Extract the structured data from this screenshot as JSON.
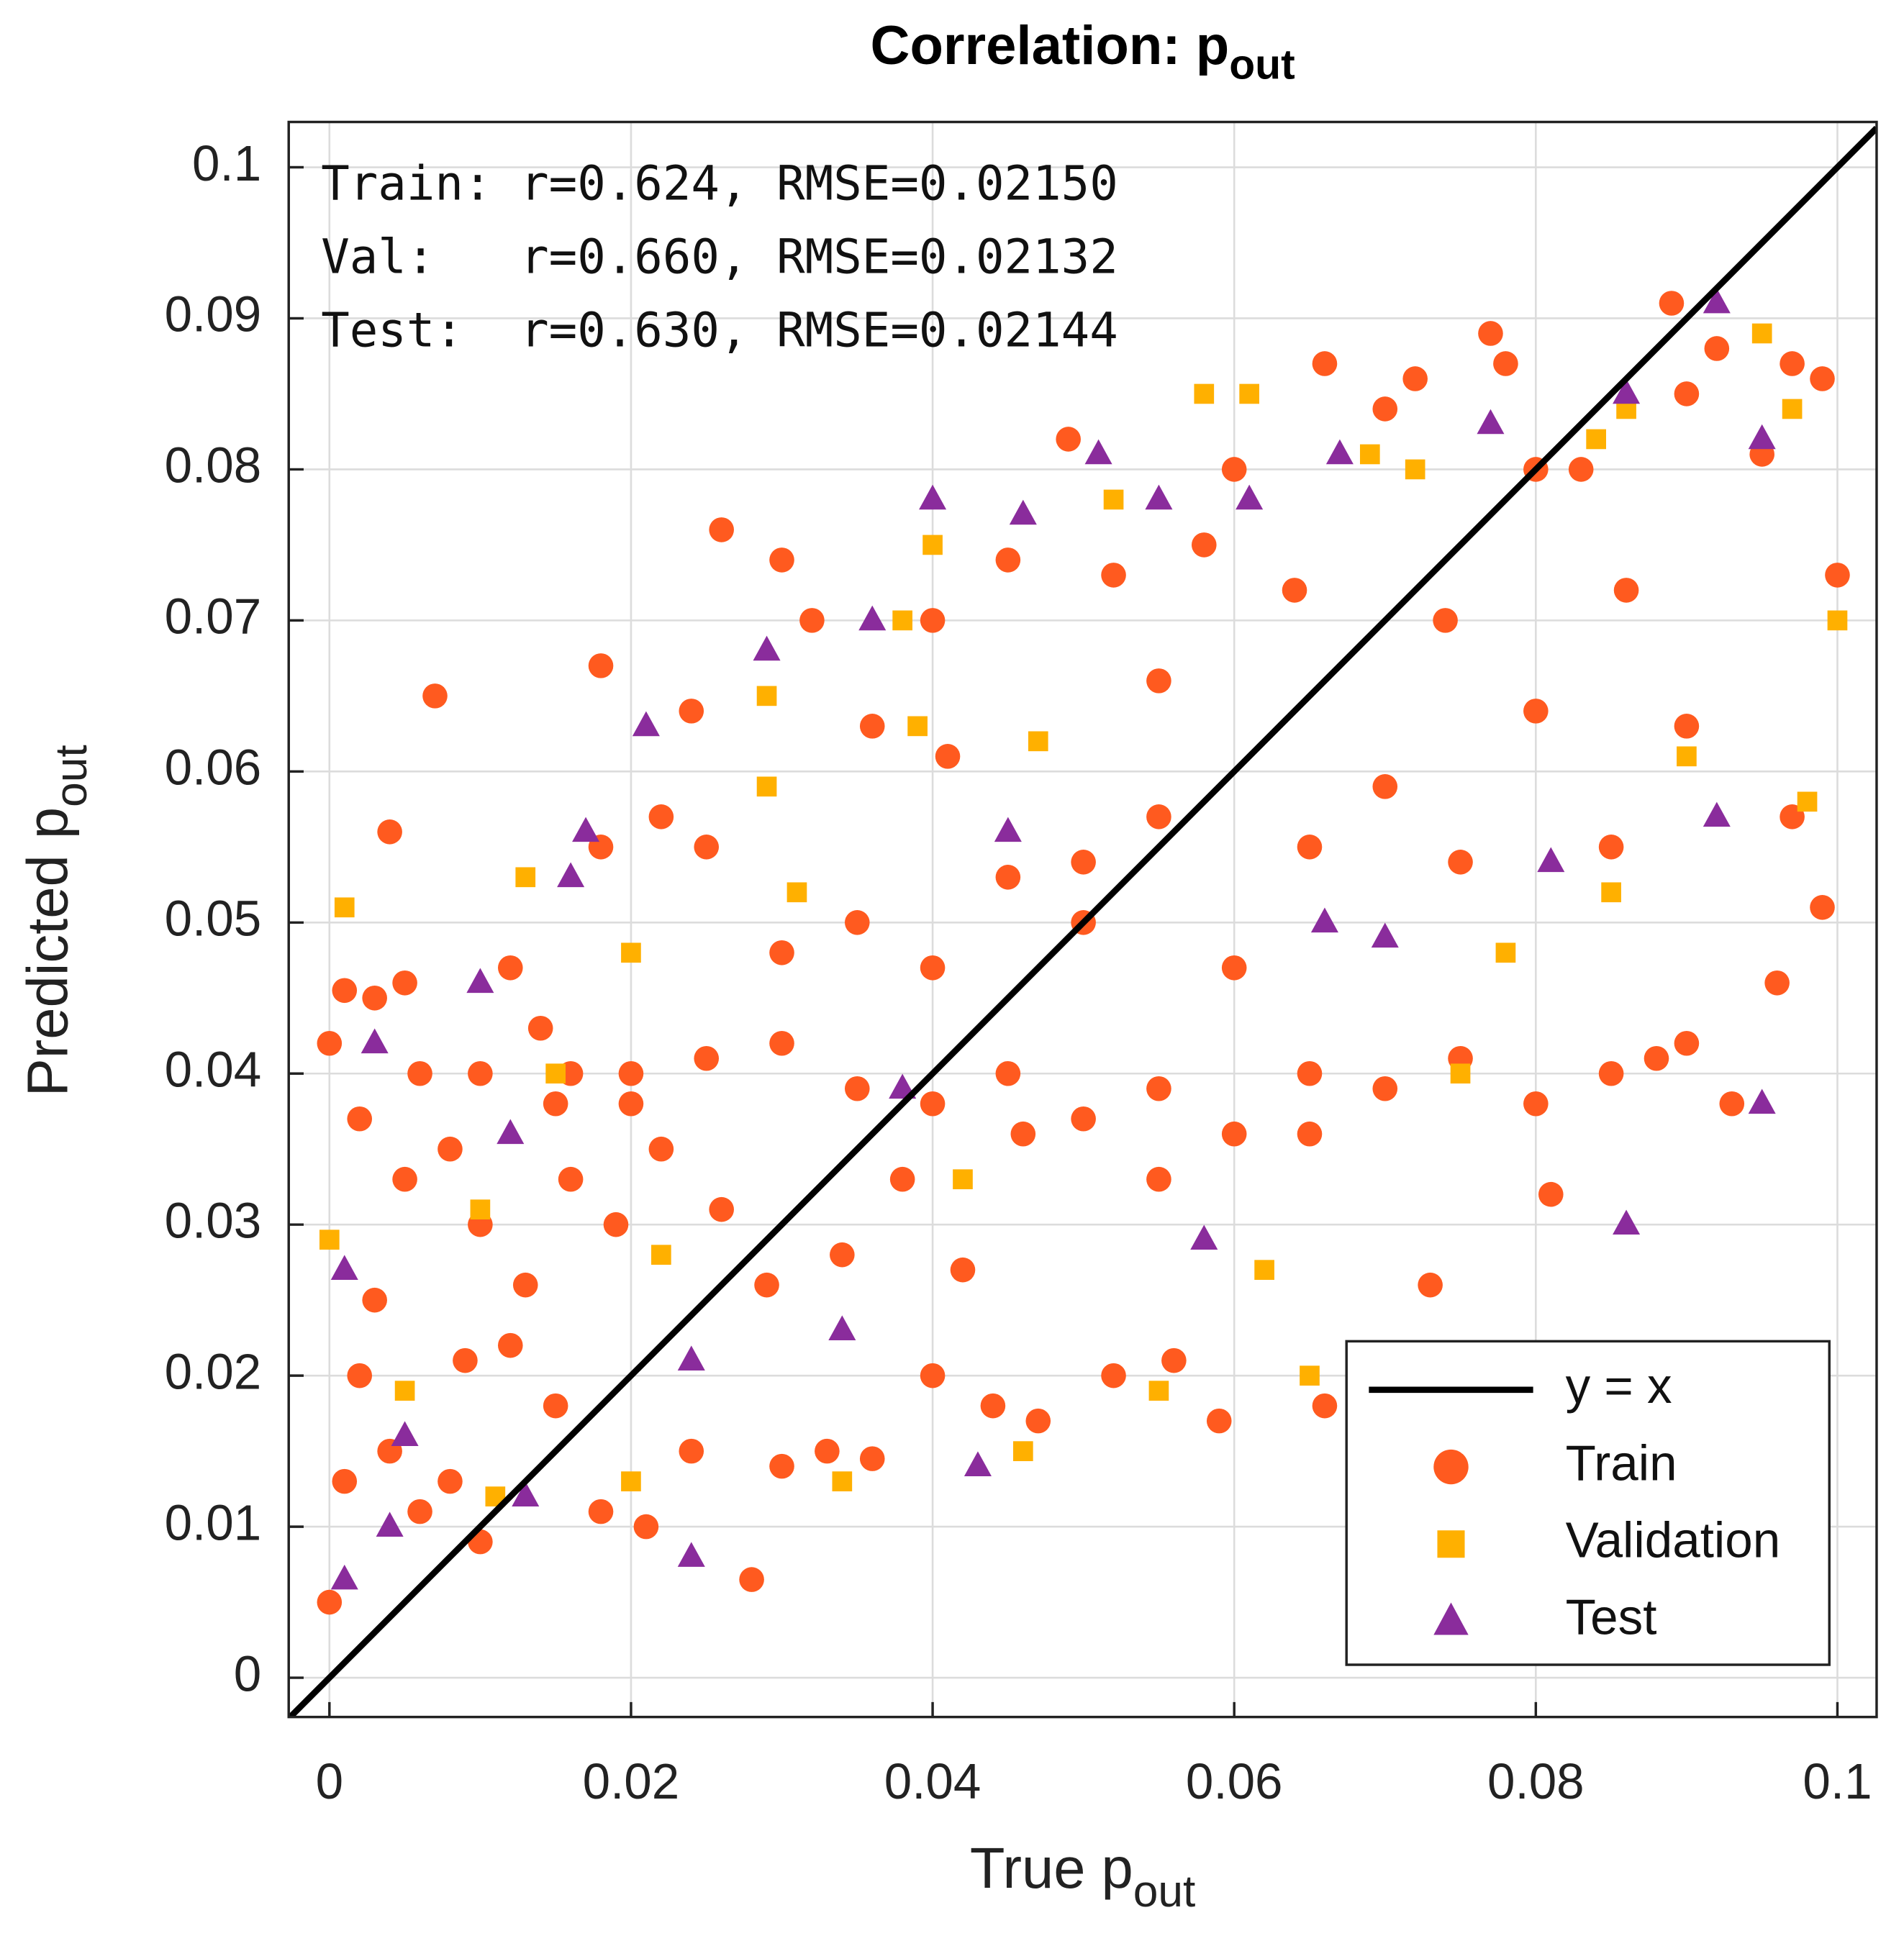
{
  "chart_data": {
    "type": "scatter",
    "title": "Correlation: p",
    "title_sub": "out",
    "xlabel": "True p",
    "xlabel_sub": "out",
    "ylabel": "Predicted p",
    "ylabel_sub": "out",
    "annotations": [
      "Train: r=0.624, RMSE=0.02150",
      "Val:   r=0.660, RMSE=0.02132",
      "Test:  r=0.630, RMSE=0.02144"
    ],
    "xlim": [
      -0.0027,
      0.1026
    ],
    "ylim": [
      -0.0026,
      0.103
    ],
    "xticks": [
      0,
      0.02,
      0.04,
      0.06,
      0.08,
      0.1
    ],
    "yticks": [
      0,
      0.01,
      0.02,
      0.03,
      0.04,
      0.05,
      0.06,
      0.07,
      0.08,
      0.09,
      0.1
    ],
    "grid": true,
    "legend": "lower right",
    "reference_line": {
      "name": "y = x",
      "color": "#000000",
      "x": [
        -0.0027,
        0.1026
      ],
      "values": [
        -0.0027,
        0.1026
      ]
    },
    "series": [
      {
        "name": "Train",
        "marker": "circle",
        "color": "#ff5a1f",
        "x": [
          0.0,
          0.001,
          0.002,
          0.003,
          0.004,
          0.005,
          0.007,
          0.006,
          0.008,
          0.01,
          0.012,
          0.014,
          0.016,
          0.018,
          0.018,
          0.02,
          0.022,
          0.024,
          0.026,
          0.03,
          0.032,
          0.036,
          0.04,
          0.041,
          0.045,
          0.049,
          0.05,
          0.052,
          0.055,
          0.058,
          0.06,
          0.064,
          0.066,
          0.07,
          0.072,
          0.074,
          0.077,
          0.078,
          0.08,
          0.083,
          0.086,
          0.089,
          0.09,
          0.092,
          0.095,
          0.097,
          0.099,
          0.1,
          0.099,
          0.097,
          0.09,
          0.085,
          0.08,
          0.075,
          0.07,
          0.065,
          0.06,
          0.055,
          0.05,
          0.045,
          0.04,
          0.035,
          0.03,
          0.025,
          0.002,
          0.004,
          0.006,
          0.008,
          0.01,
          0.012,
          0.015,
          0.018,
          0.021,
          0.024,
          0.028,
          0.03,
          0.033,
          0.036,
          0.04,
          0.044,
          0.047,
          0.052,
          0.056,
          0.059,
          0.066,
          0.073,
          0.081,
          0.088,
          0.093,
          0.096,
          0.0,
          0.001,
          0.003,
          0.005,
          0.009,
          0.013,
          0.016,
          0.019,
          0.022,
          0.026,
          0.029,
          0.034,
          0.038,
          0.042,
          0.046,
          0.05,
          0.055,
          0.06,
          0.065,
          0.07,
          0.075,
          0.08,
          0.085,
          0.09,
          0.015,
          0.025,
          0.035,
          0.045,
          0.055,
          0.065,
          0.01,
          0.02,
          0.03,
          0.04
        ],
        "values": [
          0.042,
          0.0455,
          0.037,
          0.045,
          0.056,
          0.046,
          0.065,
          0.04,
          0.035,
          0.03,
          0.047,
          0.043,
          0.04,
          0.067,
          0.055,
          0.04,
          0.057,
          0.064,
          0.076,
          0.074,
          0.07,
          0.063,
          0.07,
          0.061,
          0.074,
          0.082,
          0.054,
          0.073,
          0.066,
          0.075,
          0.08,
          0.072,
          0.087,
          0.084,
          0.086,
          0.07,
          0.089,
          0.087,
          0.08,
          0.08,
          0.072,
          0.091,
          0.085,
          0.088,
          0.081,
          0.087,
          0.086,
          0.073,
          0.051,
          0.057,
          0.063,
          0.055,
          0.064,
          0.054,
          0.059,
          0.055,
          0.047,
          0.057,
          0.05,
          0.053,
          0.047,
          0.05,
          0.048,
          0.055,
          0.02,
          0.015,
          0.011,
          0.013,
          0.009,
          0.022,
          0.018,
          0.011,
          0.01,
          0.015,
          0.0065,
          0.014,
          0.015,
          0.0145,
          0.02,
          0.018,
          0.017,
          0.02,
          0.021,
          0.017,
          0.018,
          0.026,
          0.032,
          0.041,
          0.038,
          0.046,
          0.005,
          0.013,
          0.025,
          0.033,
          0.021,
          0.026,
          0.033,
          0.03,
          0.035,
          0.031,
          0.026,
          0.028,
          0.033,
          0.027,
          0.036,
          0.037,
          0.033,
          0.036,
          0.04,
          0.039,
          0.041,
          0.038,
          0.04,
          0.042,
          0.038,
          0.041,
          0.039,
          0.04,
          0.039,
          0.036,
          0.04,
          0.038,
          0.042,
          0.038
        ]
      },
      {
        "name": "Validation",
        "marker": "square",
        "color": "#ffb000",
        "x": [
          0.001,
          0.0,
          0.005,
          0.01,
          0.013,
          0.02,
          0.022,
          0.029,
          0.029,
          0.031,
          0.038,
          0.039,
          0.04,
          0.047,
          0.052,
          0.058,
          0.061,
          0.069,
          0.072,
          0.084,
          0.086,
          0.095,
          0.097,
          0.1,
          0.098,
          0.09,
          0.085,
          0.078,
          0.062,
          0.046,
          0.034,
          0.02,
          0.011,
          0.055,
          0.065,
          0.042,
          0.075,
          0.015
        ],
        "values": [
          0.051,
          0.029,
          0.019,
          0.031,
          0.053,
          0.048,
          0.028,
          0.059,
          0.065,
          0.052,
          0.07,
          0.063,
          0.075,
          0.062,
          0.078,
          0.085,
          0.085,
          0.081,
          0.08,
          0.082,
          0.084,
          0.089,
          0.084,
          0.07,
          0.058,
          0.061,
          0.052,
          0.048,
          0.027,
          0.015,
          0.013,
          0.013,
          0.012,
          0.019,
          0.02,
          0.033,
          0.04,
          0.04
        ]
      },
      {
        "name": "Test",
        "marker": "triangle",
        "color": "#8a2c9c",
        "x": [
          0.001,
          0.001,
          0.003,
          0.004,
          0.01,
          0.013,
          0.016,
          0.017,
          0.021,
          0.024,
          0.029,
          0.036,
          0.04,
          0.046,
          0.051,
          0.055,
          0.061,
          0.067,
          0.077,
          0.086,
          0.092,
          0.095,
          0.095,
          0.092,
          0.086,
          0.081,
          0.066,
          0.058,
          0.043,
          0.034,
          0.024,
          0.012,
          0.005,
          0.045,
          0.07,
          0.038
        ],
        "values": [
          0.0065,
          0.027,
          0.042,
          0.01,
          0.046,
          0.012,
          0.053,
          0.056,
          0.063,
          0.008,
          0.068,
          0.07,
          0.078,
          0.077,
          0.081,
          0.078,
          0.078,
          0.081,
          0.083,
          0.085,
          0.091,
          0.082,
          0.038,
          0.057,
          0.03,
          0.054,
          0.05,
          0.029,
          0.014,
          0.023,
          0.021,
          0.036,
          0.016,
          0.056,
          0.049,
          0.039
        ]
      }
    ]
  }
}
